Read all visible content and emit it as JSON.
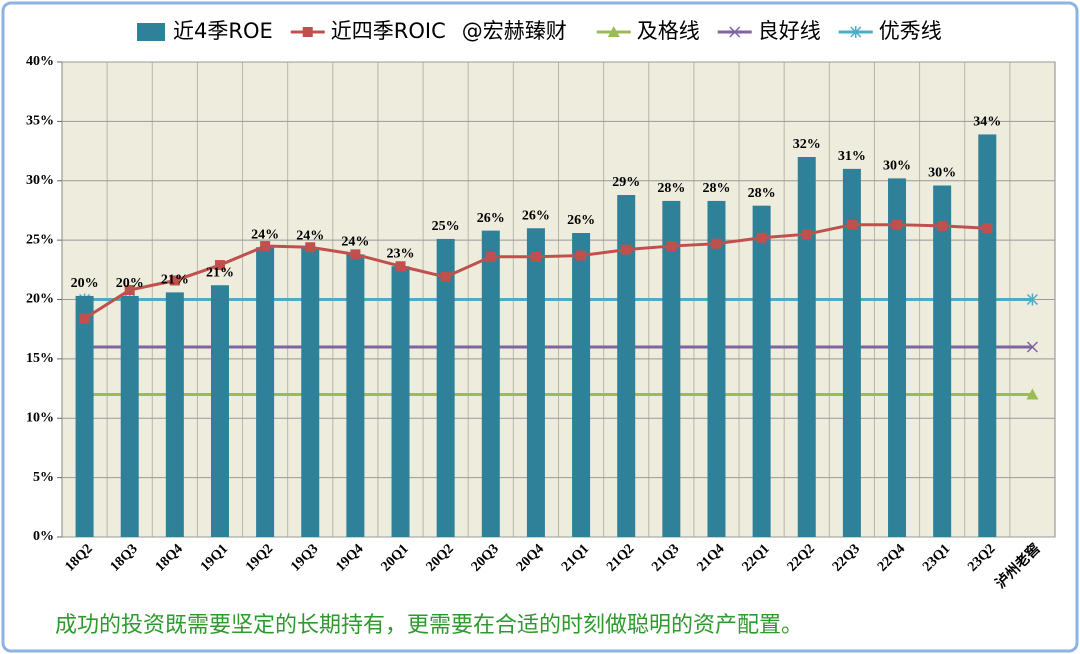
{
  "chart_data": {
    "type": "bar_line",
    "watermark": "@宏赫臻财",
    "footnote": "成功的投资既需要坚定的长期持有，更需要在合适的时刻做聪明的资产配置。",
    "categories": [
      "18Q2",
      "18Q3",
      "18Q4",
      "19Q1",
      "19Q2",
      "19Q3",
      "19Q4",
      "20Q1",
      "20Q2",
      "20Q3",
      "20Q4",
      "21Q1",
      "21Q2",
      "21Q3",
      "21Q4",
      "22Q1",
      "22Q2",
      "22Q3",
      "22Q4",
      "23Q1",
      "23Q2",
      "泸州老窖"
    ],
    "series": [
      {
        "name": "近4季ROE",
        "type": "bar",
        "color": "#2f8199",
        "values": [
          20.3,
          20.3,
          20.6,
          21.2,
          24.4,
          24.3,
          23.8,
          22.8,
          25.1,
          25.8,
          26.0,
          25.6,
          28.8,
          28.3,
          28.3,
          27.9,
          32.0,
          31.0,
          30.2,
          29.6,
          33.9,
          null
        ],
        "value_labels": [
          "20%",
          "20%",
          "21%",
          "21%",
          "24%",
          "24%",
          "24%",
          "23%",
          "25%",
          "26%",
          "26%",
          "26%",
          "29%",
          "28%",
          "28%",
          "28%",
          "32%",
          "31%",
          "30%",
          "30%",
          "34%",
          null
        ]
      },
      {
        "name": "近四季ROIC",
        "type": "line",
        "marker": "square",
        "color": "#c0504d",
        "values": [
          18.4,
          20.8,
          21.6,
          22.9,
          24.5,
          24.4,
          23.8,
          22.8,
          21.9,
          23.6,
          23.6,
          23.7,
          24.2,
          24.5,
          24.7,
          25.2,
          25.5,
          26.3,
          26.3,
          26.2,
          26.0,
          null
        ]
      },
      {
        "name": "及格线",
        "type": "line",
        "marker": "triangle",
        "color": "#9bbb59",
        "values": [
          12,
          12,
          12,
          12,
          12,
          12,
          12,
          12,
          12,
          12,
          12,
          12,
          12,
          12,
          12,
          12,
          12,
          12,
          12,
          12,
          12,
          12
        ]
      },
      {
        "name": "良好线",
        "type": "line",
        "marker": "x",
        "color": "#8064a2",
        "values": [
          16,
          16,
          16,
          16,
          16,
          16,
          16,
          16,
          16,
          16,
          16,
          16,
          16,
          16,
          16,
          16,
          16,
          16,
          16,
          16,
          16,
          16
        ]
      },
      {
        "name": "优秀线",
        "type": "line",
        "marker": "star",
        "color": "#4bacc6",
        "values": [
          20,
          20,
          20,
          20,
          20,
          20,
          20,
          20,
          20,
          20,
          20,
          20,
          20,
          20,
          20,
          20,
          20,
          20,
          20,
          20,
          20,
          20
        ]
      }
    ],
    "ylim": [
      0,
      40
    ],
    "yticks": [
      {
        "value": 0,
        "label": "0%"
      },
      {
        "value": 5,
        "label": "5%"
      },
      {
        "value": 10,
        "label": "10%"
      },
      {
        "value": 15,
        "label": "15%"
      },
      {
        "value": 20,
        "label": "20%"
      },
      {
        "value": 25,
        "label": "25%"
      },
      {
        "value": 30,
        "label": "30%"
      },
      {
        "value": 35,
        "label": "35%"
      },
      {
        "value": 40,
        "label": "40%"
      }
    ],
    "grid": true,
    "legend": "top"
  }
}
